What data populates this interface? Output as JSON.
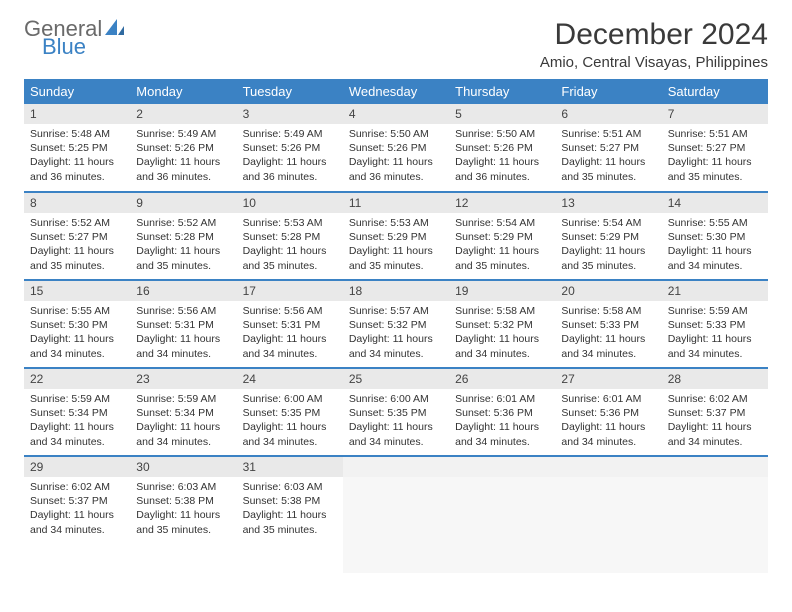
{
  "logo": {
    "general": "General",
    "blue": "Blue",
    "icon_fill": "#3b82c4"
  },
  "title": "December 2024",
  "location": "Amio, Central Visayas, Philippines",
  "header_bg": "#3b82c4",
  "header_text": "#ffffff",
  "rule_color": "#3b82c4",
  "daynum_bg": "#e9e9e9",
  "empty_bg": "#f2f2f2",
  "weekdays": [
    "Sunday",
    "Monday",
    "Tuesday",
    "Wednesday",
    "Thursday",
    "Friday",
    "Saturday"
  ],
  "weeks": [
    [
      {
        "num": "1",
        "sunrise": "Sunrise: 5:48 AM",
        "sunset": "Sunset: 5:25 PM",
        "daylight": "Daylight: 11 hours and 36 minutes."
      },
      {
        "num": "2",
        "sunrise": "Sunrise: 5:49 AM",
        "sunset": "Sunset: 5:26 PM",
        "daylight": "Daylight: 11 hours and 36 minutes."
      },
      {
        "num": "3",
        "sunrise": "Sunrise: 5:49 AM",
        "sunset": "Sunset: 5:26 PM",
        "daylight": "Daylight: 11 hours and 36 minutes."
      },
      {
        "num": "4",
        "sunrise": "Sunrise: 5:50 AM",
        "sunset": "Sunset: 5:26 PM",
        "daylight": "Daylight: 11 hours and 36 minutes."
      },
      {
        "num": "5",
        "sunrise": "Sunrise: 5:50 AM",
        "sunset": "Sunset: 5:26 PM",
        "daylight": "Daylight: 11 hours and 36 minutes."
      },
      {
        "num": "6",
        "sunrise": "Sunrise: 5:51 AM",
        "sunset": "Sunset: 5:27 PM",
        "daylight": "Daylight: 11 hours and 35 minutes."
      },
      {
        "num": "7",
        "sunrise": "Sunrise: 5:51 AM",
        "sunset": "Sunset: 5:27 PM",
        "daylight": "Daylight: 11 hours and 35 minutes."
      }
    ],
    [
      {
        "num": "8",
        "sunrise": "Sunrise: 5:52 AM",
        "sunset": "Sunset: 5:27 PM",
        "daylight": "Daylight: 11 hours and 35 minutes."
      },
      {
        "num": "9",
        "sunrise": "Sunrise: 5:52 AM",
        "sunset": "Sunset: 5:28 PM",
        "daylight": "Daylight: 11 hours and 35 minutes."
      },
      {
        "num": "10",
        "sunrise": "Sunrise: 5:53 AM",
        "sunset": "Sunset: 5:28 PM",
        "daylight": "Daylight: 11 hours and 35 minutes."
      },
      {
        "num": "11",
        "sunrise": "Sunrise: 5:53 AM",
        "sunset": "Sunset: 5:29 PM",
        "daylight": "Daylight: 11 hours and 35 minutes."
      },
      {
        "num": "12",
        "sunrise": "Sunrise: 5:54 AM",
        "sunset": "Sunset: 5:29 PM",
        "daylight": "Daylight: 11 hours and 35 minutes."
      },
      {
        "num": "13",
        "sunrise": "Sunrise: 5:54 AM",
        "sunset": "Sunset: 5:29 PM",
        "daylight": "Daylight: 11 hours and 35 minutes."
      },
      {
        "num": "14",
        "sunrise": "Sunrise: 5:55 AM",
        "sunset": "Sunset: 5:30 PM",
        "daylight": "Daylight: 11 hours and 34 minutes."
      }
    ],
    [
      {
        "num": "15",
        "sunrise": "Sunrise: 5:55 AM",
        "sunset": "Sunset: 5:30 PM",
        "daylight": "Daylight: 11 hours and 34 minutes."
      },
      {
        "num": "16",
        "sunrise": "Sunrise: 5:56 AM",
        "sunset": "Sunset: 5:31 PM",
        "daylight": "Daylight: 11 hours and 34 minutes."
      },
      {
        "num": "17",
        "sunrise": "Sunrise: 5:56 AM",
        "sunset": "Sunset: 5:31 PM",
        "daylight": "Daylight: 11 hours and 34 minutes."
      },
      {
        "num": "18",
        "sunrise": "Sunrise: 5:57 AM",
        "sunset": "Sunset: 5:32 PM",
        "daylight": "Daylight: 11 hours and 34 minutes."
      },
      {
        "num": "19",
        "sunrise": "Sunrise: 5:58 AM",
        "sunset": "Sunset: 5:32 PM",
        "daylight": "Daylight: 11 hours and 34 minutes."
      },
      {
        "num": "20",
        "sunrise": "Sunrise: 5:58 AM",
        "sunset": "Sunset: 5:33 PM",
        "daylight": "Daylight: 11 hours and 34 minutes."
      },
      {
        "num": "21",
        "sunrise": "Sunrise: 5:59 AM",
        "sunset": "Sunset: 5:33 PM",
        "daylight": "Daylight: 11 hours and 34 minutes."
      }
    ],
    [
      {
        "num": "22",
        "sunrise": "Sunrise: 5:59 AM",
        "sunset": "Sunset: 5:34 PM",
        "daylight": "Daylight: 11 hours and 34 minutes."
      },
      {
        "num": "23",
        "sunrise": "Sunrise: 5:59 AM",
        "sunset": "Sunset: 5:34 PM",
        "daylight": "Daylight: 11 hours and 34 minutes."
      },
      {
        "num": "24",
        "sunrise": "Sunrise: 6:00 AM",
        "sunset": "Sunset: 5:35 PM",
        "daylight": "Daylight: 11 hours and 34 minutes."
      },
      {
        "num": "25",
        "sunrise": "Sunrise: 6:00 AM",
        "sunset": "Sunset: 5:35 PM",
        "daylight": "Daylight: 11 hours and 34 minutes."
      },
      {
        "num": "26",
        "sunrise": "Sunrise: 6:01 AM",
        "sunset": "Sunset: 5:36 PM",
        "daylight": "Daylight: 11 hours and 34 minutes."
      },
      {
        "num": "27",
        "sunrise": "Sunrise: 6:01 AM",
        "sunset": "Sunset: 5:36 PM",
        "daylight": "Daylight: 11 hours and 34 minutes."
      },
      {
        "num": "28",
        "sunrise": "Sunrise: 6:02 AM",
        "sunset": "Sunset: 5:37 PM",
        "daylight": "Daylight: 11 hours and 34 minutes."
      }
    ],
    [
      {
        "num": "29",
        "sunrise": "Sunrise: 6:02 AM",
        "sunset": "Sunset: 5:37 PM",
        "daylight": "Daylight: 11 hours and 34 minutes."
      },
      {
        "num": "30",
        "sunrise": "Sunrise: 6:03 AM",
        "sunset": "Sunset: 5:38 PM",
        "daylight": "Daylight: 11 hours and 35 minutes."
      },
      {
        "num": "31",
        "sunrise": "Sunrise: 6:03 AM",
        "sunset": "Sunset: 5:38 PM",
        "daylight": "Daylight: 11 hours and 35 minutes."
      },
      null,
      null,
      null,
      null
    ]
  ]
}
